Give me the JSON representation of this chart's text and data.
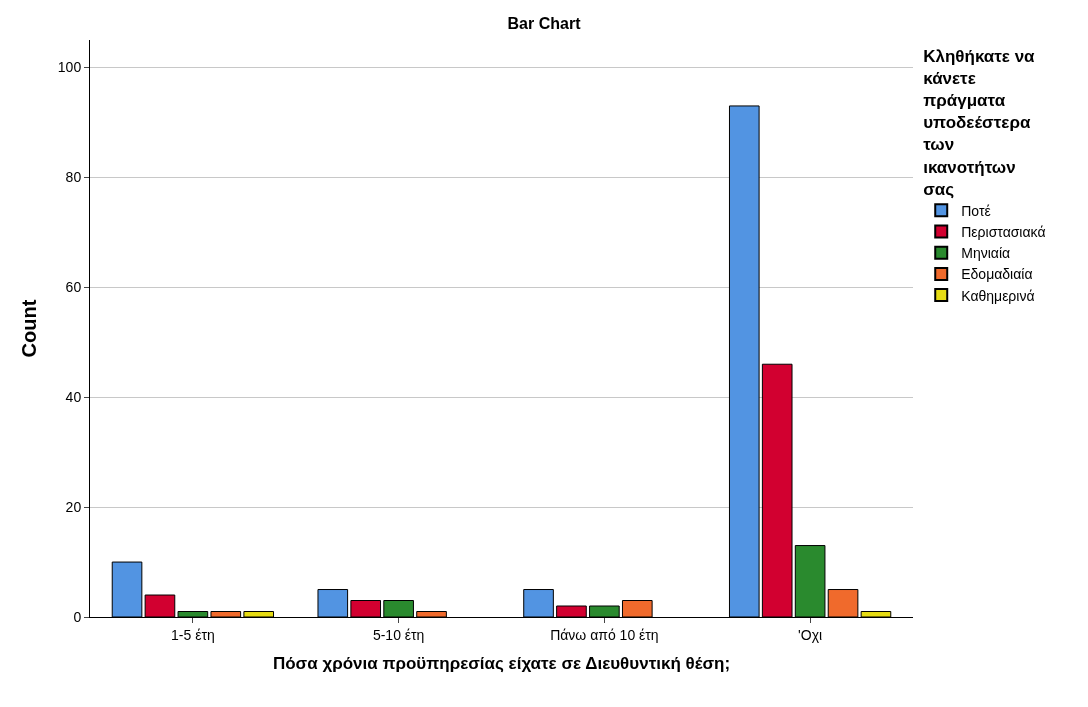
{
  "chart_data": {
    "type": "bar",
    "title": "Bar Chart",
    "xlabel": "Πόσα χρόνια προϋπηρεσίας είχατε σε Διευθυντική θέση;",
    "ylabel": "Count",
    "legend_title": "Κληθήκατε να κάνετε πράγματα υποδεέστερα των ικανοτήτων σας",
    "categories": [
      "1-5 έτη",
      "5-10 έτη",
      "Πάνω από 10 έτη",
      "'Οχι"
    ],
    "series": [
      {
        "name": "Ποτέ",
        "color": "#5294e2",
        "values": [
          10,
          5,
          5,
          93
        ]
      },
      {
        "name": "Περιστασιακά",
        "color": "#d20030",
        "values": [
          4,
          3,
          2,
          46
        ]
      },
      {
        "name": "Μηνιαία",
        "color": "#2a8a2e",
        "values": [
          1,
          3,
          2,
          13
        ]
      },
      {
        "name": "Εδομαδιαία",
        "color": "#f06a2c",
        "values": [
          1,
          1,
          3,
          5
        ]
      },
      {
        "name": "Καθημερινά",
        "color": "#e6dc14",
        "values": [
          1,
          null,
          null,
          1
        ]
      }
    ],
    "ylim": [
      0,
      105
    ],
    "yticks": [
      0,
      20,
      40,
      60,
      80,
      100
    ],
    "grid": "y",
    "legend": "top right"
  }
}
